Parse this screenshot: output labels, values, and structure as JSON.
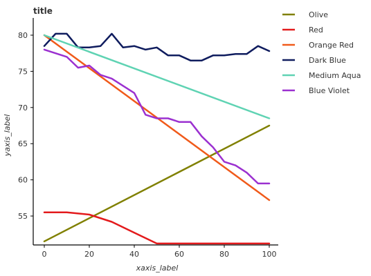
{
  "chart_data": {
    "type": "line",
    "title": "title",
    "xlabel": "xaxis_label",
    "ylabel": "yaxis_label",
    "xlim": [
      0,
      100
    ],
    "ylim": [
      51,
      82
    ],
    "x_ticks": [
      "0",
      "20",
      "40",
      "60",
      "80",
      "100"
    ],
    "y_ticks": [
      "55",
      "60",
      "65",
      "70",
      "75",
      "80"
    ],
    "grid": false,
    "legend_position": "right",
    "series": [
      {
        "name": "Olive",
        "color": "#808000",
        "x": [
          0,
          100
        ],
        "y": [
          51.5,
          67.5
        ]
      },
      {
        "name": "Red",
        "color": "#e31a1c",
        "x": [
          0,
          10,
          20,
          30,
          40,
          50,
          60,
          70,
          80,
          90,
          100
        ],
        "y": [
          55.5,
          55.5,
          55.2,
          54.2,
          52.7,
          51.2,
          51.2,
          51.2,
          51.2,
          51.2,
          51.2
        ]
      },
      {
        "name": "Orange Red",
        "color": "#f05a1a",
        "x": [
          0,
          100
        ],
        "y": [
          80.0,
          57.2
        ]
      },
      {
        "name": "Dark Blue",
        "color": "#0f1c5e",
        "x": [
          0,
          5,
          10,
          15,
          20,
          25,
          30,
          35,
          40,
          45,
          50,
          55,
          60,
          65,
          70,
          75,
          80,
          85,
          90,
          95,
          100
        ],
        "y": [
          78.5,
          80.2,
          80.2,
          78.3,
          78.3,
          78.5,
          80.2,
          78.3,
          78.5,
          78.0,
          78.3,
          77.2,
          77.2,
          76.5,
          76.5,
          77.2,
          77.2,
          77.4,
          77.4,
          78.5,
          77.8
        ]
      },
      {
        "name": "Medium Aqua",
        "color": "#5fd3b3",
        "x": [
          0,
          100
        ],
        "y": [
          80.0,
          68.5
        ]
      },
      {
        "name": "Blue Violet",
        "color": "#9b30d0",
        "x": [
          0,
          5,
          10,
          15,
          20,
          25,
          30,
          35,
          40,
          45,
          50,
          55,
          60,
          65,
          70,
          75,
          80,
          85,
          90,
          95,
          100
        ],
        "y": [
          78.0,
          77.5,
          77.0,
          75.5,
          75.8,
          74.5,
          74.0,
          73.0,
          72.0,
          69.0,
          68.5,
          68.5,
          68.0,
          68.0,
          66.0,
          64.5,
          62.5,
          62.0,
          61.0,
          59.5,
          59.5
        ]
      }
    ]
  }
}
